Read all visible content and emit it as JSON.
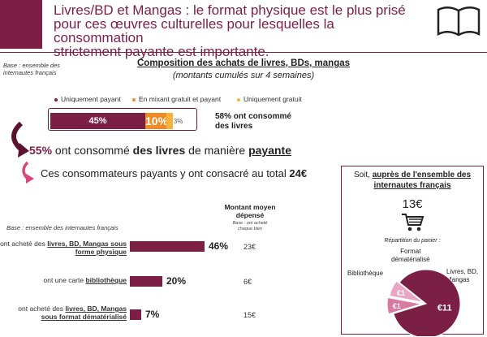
{
  "header": {
    "title_line1": "Livres/BD et Mangas : le format physique est le plus prisé",
    "title_line2": "pour ces œuvres culturelles pour lesquelles la consommation",
    "title_line3": "strictement payante est importante."
  },
  "base_note_top": [
    "Base : ensemble des",
    "internautes français"
  ],
  "composition": {
    "title": "Composition des achats de livres, BDs, mangas",
    "subtitle": "(montants cumulés sur 4 semaines)"
  },
  "chart_data": [
    {
      "type": "bar",
      "orientation": "stacked-horizontal",
      "categories": [
        "Uniquement payant",
        "En mixant gratuit et payant",
        "Uniquement gratuit"
      ],
      "values": [
        45,
        10,
        3
      ],
      "labels": [
        "45%",
        "10%",
        "3%"
      ],
      "colors": [
        "#7b1f45",
        "#f08a24",
        "#f5b33a"
      ],
      "legend": "top"
    },
    {
      "type": "bar",
      "orientation": "horizontal",
      "categories": [
        "ont acheté des livres, BD, Mangas sous forme physique",
        "ont une carte bibliothèque",
        "ont acheté des livres, BD, Mangas sous format dématérialisé"
      ],
      "values": [
        46,
        20,
        7
      ],
      "labels": [
        "46%",
        "20%",
        "7%"
      ],
      "means": [
        "23€",
        "6€",
        "15€"
      ]
    },
    {
      "type": "pie",
      "categories": [
        "Livres, BD, Mangas",
        "Format dématérialisé",
        "Bibliothèque"
      ],
      "labels": [
        "€11",
        "€1",
        "€1"
      ],
      "values": [
        11,
        1,
        1
      ],
      "colors": [
        "#7b1f45",
        "#d97aa4",
        "#e9a6c4"
      ]
    }
  ],
  "stat_58": {
    "pct": "58%",
    "rest1": " ont consommé",
    "rest2": "des livres"
  },
  "stat_55": {
    "pct": "55%",
    "a": " ont consommé ",
    "b": "des livres",
    "c": " de manière ",
    "d": "payante"
  },
  "total": {
    "text": "Ces consommateurs payants y ont consacré au total ",
    "amount": "24€"
  },
  "mean_header": {
    "l1": "Montant moyen",
    "l2": "dépensé",
    "base1": "Base : ont acheté",
    "base2": "chaque bien"
  },
  "base_note_bottom": "Base : ensemble des internautes français",
  "rows": [
    {
      "pre": "ont acheté des ",
      "bold": "livres, BD, Mangas sous",
      "bold2": "forme physique"
    },
    {
      "pre": "ont une carte ",
      "bold": "bibliothèque"
    },
    {
      "pre": "ont acheté des ",
      "bold": "livres, BD, Mangas",
      "bold2": "sous format dématérialisé"
    }
  ],
  "side": {
    "t1a": "Soit, ",
    "t1b": "auprès de l'ensemble des",
    "t2": "internautes français",
    "amount": "13€",
    "rep": "Répartition du panier :",
    "lbl_format1": "Format",
    "lbl_format2": "dématérialisé",
    "lbl_biblio": "Bibliothèque",
    "lbl_livres1": "Livres, BD,",
    "lbl_livres2": "Mangas"
  },
  "colors": {
    "accent": "#7b1f45",
    "orange": "#f08a24",
    "yellow": "#f5b33a",
    "pink": "#d9467e"
  },
  "icons": [
    "book-icon",
    "cart-icon",
    "curved-arrow-icon"
  ]
}
